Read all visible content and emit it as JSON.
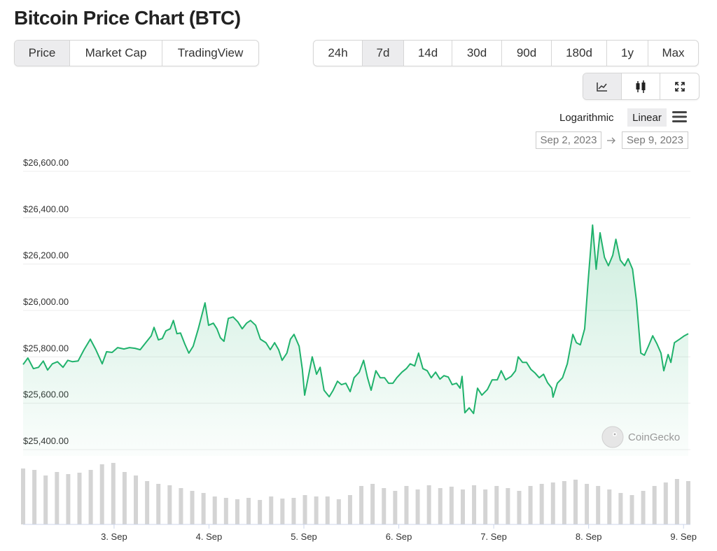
{
  "header": {
    "title": "Bitcoin Price Chart (BTC)"
  },
  "view_tabs": [
    {
      "label": "Price",
      "selected": true
    },
    {
      "label": "Market Cap",
      "selected": false
    },
    {
      "label": "TradingView",
      "selected": false
    }
  ],
  "range_tabs": [
    {
      "label": "24h",
      "selected": false
    },
    {
      "label": "7d",
      "selected": true
    },
    {
      "label": "14d",
      "selected": false
    },
    {
      "label": "30d",
      "selected": false
    },
    {
      "label": "90d",
      "selected": false
    },
    {
      "label": "180d",
      "selected": false
    },
    {
      "label": "1y",
      "selected": false
    },
    {
      "label": "Max",
      "selected": false
    }
  ],
  "scale_options": [
    {
      "label": "Logarithmic",
      "selected": false
    },
    {
      "label": "Linear",
      "selected": true
    }
  ],
  "date_range": {
    "from": "Sep 2, 2023",
    "to": "Sep 9, 2023"
  },
  "watermark": "CoinGecko",
  "chart_data": {
    "type": "line",
    "color": "#20b26c",
    "x": [
      1.0,
      2.2,
      3.6,
      4.9,
      6.1,
      7.2,
      8.4,
      9.7,
      11.1,
      12.3,
      13.5,
      14.9,
      16.4,
      18.0,
      19.4,
      21.0,
      22.1,
      23.5,
      24.9,
      26.5,
      27.9,
      29.3,
      30.6,
      32.0,
      33.4,
      34.1,
      35.2,
      36.2,
      37.1,
      38.2,
      39.0,
      39.9,
      40.8,
      41.9,
      42.9,
      44.0,
      45.3,
      47.0,
      47.9,
      49.1,
      50.0,
      50.9,
      51.8,
      52.9,
      54.1,
      55.3,
      56.4,
      57.5,
      58.5,
      59.8,
      61.0,
      62.4,
      63.5,
      64.6,
      65.6,
      66.5,
      67.7,
      68.6,
      69.5,
      70.8,
      71.6,
      72.2,
      73.6,
      74.1,
      75.2,
      76.1,
      77.1,
      78.4,
      79.4,
      80.5,
      81.5,
      82.6,
      83.7,
      84.7,
      86.0,
      87.1,
      88.1,
      89.0,
      90.2,
      91.3,
      92.4,
      93.4,
      94.5,
      95.5,
      96.8,
      97.9,
      98.9,
      100.0,
      101.0,
      102.1,
      103.2,
      104.2,
      105.3,
      106.4,
      107.4,
      108.5,
      109.5,
      110.6,
      111.5,
      112.0,
      112.7,
      113.8,
      114.9,
      115.9,
      117.0,
      118.4,
      119.6,
      120.9,
      121.9,
      123.0,
      124.4,
      125.5,
      126.2,
      127.3,
      128.3,
      129.4,
      130.4,
      131.5,
      132.6,
      133.6,
      134.7,
      135.0,
      136.1,
      137.4,
      138.6,
      140.0,
      140.9,
      141.9,
      143.0,
      143.9,
      145.0,
      145.9,
      146.9,
      148.0,
      149.0,
      150.1,
      150.9,
      152.0,
      153.1,
      154.0,
      155.1,
      156.1,
      157.2,
      158.1,
      159.1,
      160.2,
      161.3,
      162.3,
      163.0,
      164.1,
      164.8,
      165.7,
      167.0,
      168.2,
      169.2
    ],
    "values": [
      25767,
      25795,
      25749,
      25755,
      25782,
      25743,
      25770,
      25779,
      25755,
      25785,
      25779,
      25782,
      25831,
      25876,
      25831,
      25770,
      25822,
      25819,
      25840,
      25834,
      25840,
      25837,
      25831,
      25861,
      25891,
      25927,
      25873,
      25879,
      25912,
      25921,
      25957,
      25900,
      25903,
      25855,
      25816,
      25846,
      25921,
      26033,
      25936,
      25945,
      25921,
      25882,
      25867,
      25966,
      25972,
      25951,
      25921,
      25945,
      25957,
      25936,
      25876,
      25861,
      25831,
      25861,
      25831,
      25785,
      25816,
      25876,
      25897,
      25846,
      25746,
      25635,
      25755,
      25800,
      25725,
      25755,
      25656,
      25628,
      25656,
      25695,
      25680,
      25686,
      25650,
      25710,
      25734,
      25785,
      25710,
      25656,
      25740,
      25710,
      25710,
      25686,
      25686,
      25710,
      25734,
      25749,
      25770,
      25761,
      25816,
      25749,
      25740,
      25710,
      25734,
      25704,
      25719,
      25713,
      25680,
      25686,
      25665,
      25716,
      25559,
      25580,
      25556,
      25665,
      25635,
      25659,
      25701,
      25701,
      25740,
      25701,
      25716,
      25740,
      25800,
      25776,
      25776,
      25746,
      25731,
      25710,
      25725,
      25689,
      25665,
      25626,
      25686,
      25710,
      25770,
      25897,
      25861,
      25852,
      25921,
      26132,
      26368,
      26178,
      26335,
      26229,
      26193,
      26238,
      26307,
      26217,
      26193,
      26223,
      26178,
      26042,
      25816,
      25807,
      25846,
      25891,
      25855,
      25816,
      25740,
      25810,
      25776,
      25861,
      25876,
      25891,
      25900
    ],
    "xlim": [
      1.0,
      169.2
    ],
    "xticks": [
      {
        "value": 24,
        "label": "3. Sep"
      },
      {
        "value": 48,
        "label": "4. Sep"
      },
      {
        "value": 72,
        "label": "5. Sep"
      },
      {
        "value": 96,
        "label": "6. Sep"
      },
      {
        "value": 120,
        "label": "7. Sep"
      },
      {
        "value": 144,
        "label": "8. Sep"
      },
      {
        "value": 168,
        "label": "9. Sep"
      }
    ],
    "ylim": [
      25400,
      26600
    ],
    "yticks": [
      {
        "value": 25400,
        "label": "$25,400.00"
      },
      {
        "value": 25600,
        "label": "$25,600.00"
      },
      {
        "value": 25800,
        "label": "$25,800.00"
      },
      {
        "value": 26000,
        "label": "$26,000.00"
      },
      {
        "value": 26200,
        "label": "$26,200.00"
      },
      {
        "value": 26400,
        "label": "$26,400.00"
      },
      {
        "value": 26600,
        "label": "$26,600.00"
      }
    ],
    "grid": true,
    "volume": {
      "color": "#d4d4d4",
      "values": [
        80,
        78,
        70,
        75,
        72,
        74,
        78,
        86,
        88,
        75,
        70,
        62,
        58,
        56,
        52,
        48,
        45,
        40,
        38,
        36,
        38,
        35,
        40,
        37,
        38,
        42,
        40,
        40,
        36,
        42,
        55,
        58,
        52,
        48,
        55,
        50,
        56,
        52,
        54,
        50,
        56,
        50,
        55,
        52,
        48,
        55,
        58,
        60,
        62,
        64,
        58,
        55,
        50,
        45,
        42,
        48,
        55,
        60,
        65,
        62
      ]
    },
    "volume_ylim": [
      0,
      100
    ]
  }
}
